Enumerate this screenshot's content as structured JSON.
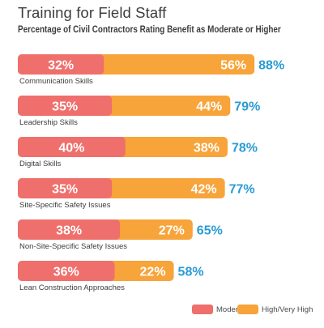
{
  "title": "Training for Field Staff",
  "subtitle": "Percentage of Civil Contractors Rating Benefit as Moderate or Higher",
  "colors": {
    "moderate": "#ef6f6c",
    "high": "#f7a43b",
    "total": "#2a9bd4",
    "label": "#3d3d3d"
  },
  "legend": {
    "moderate": "Moderate",
    "high": "High/Very High"
  },
  "chart_data": {
    "type": "bar",
    "orientation": "horizontal",
    "stacked": true,
    "categories": [
      "Communication Skills",
      "Leadership Skills",
      "Digital Skills",
      "Site-Specific Safety Issues",
      "Non-Site-Specific Safety Issues",
      "Lean Construction Approaches"
    ],
    "series": [
      {
        "name": "Moderate",
        "values": [
          32,
          35,
          40,
          35,
          38,
          36
        ],
        "labels": [
          "32%",
          "35%",
          "40%",
          "35%",
          "38%",
          "36%"
        ]
      },
      {
        "name": "High/Very High",
        "values": [
          56,
          44,
          38,
          42,
          27,
          22
        ],
        "labels": [
          "56%",
          "44%",
          "38%",
          "42%",
          "27%",
          "22%"
        ]
      }
    ],
    "totals": [
      88,
      79,
      78,
      77,
      65,
      58
    ],
    "total_labels": [
      "88%",
      "79%",
      "78%",
      "77%",
      "65%",
      "58%"
    ],
    "xlim": [
      0,
      100
    ],
    "legend_position": "bottom-right",
    "grid": false
  }
}
